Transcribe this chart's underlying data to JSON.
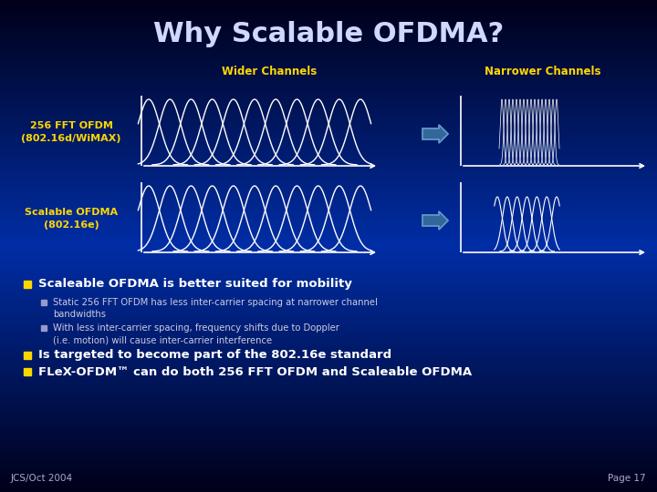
{
  "title": "Why Scalable OFDMA?",
  "title_color": "#D0D8FF",
  "title_fontsize": 22,
  "bg_color": "#00208A",
  "label_wider": "Wider Channels",
  "label_narrower": "Narrower Channels",
  "label_color": "#FFD700",
  "row1_label": "256 FFT OFDM\n(802.16d/WiMAX)",
  "row2_label": "Scalable OFDMA\n(802.16e)",
  "row_label_color": "#FFD700",
  "bullet_color_main": "#FFD700",
  "bullet_color_sub": "#9999CC",
  "bullet1": "Scaleable OFDMA is better suited for mobility",
  "bullet1_color": "#FFFFFF",
  "sub_bullet1": "Static 256 FFT OFDM has less inter-carrier spacing at narrower channel\nbandwidths",
  "sub_bullet2": "With less inter-carrier spacing, frequency shifts due to Doppler\n(i.e. motion) will cause inter-carrier interference",
  "sub_bullet_color": "#CCCCDD",
  "bullet2": "Is targeted to become part of the 802.16e standard",
  "bullet2_color": "#FFFFFF",
  "bullet3": "FLeX-OFDM™ can do both 256 FFT OFDM and Scaleable OFDMA",
  "bullet3_color": "#FFFFFF",
  "footer_left": "JCS/Oct 2004",
  "footer_right": "Page 17",
  "footer_color": "#AAAACC",
  "wave_color": "#FFFFFF",
  "arrow_color": "#6699CC",
  "arrow_fill": "#336699"
}
